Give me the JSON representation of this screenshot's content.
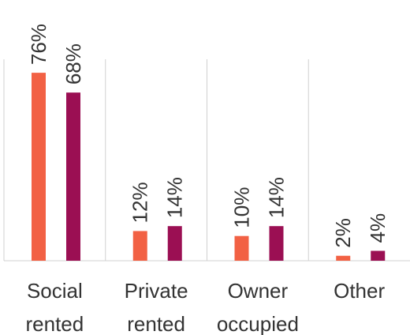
{
  "chart_data": {
    "type": "bar",
    "categories": [
      "Social rented",
      "Private rented",
      "Owner occupied",
      "Other"
    ],
    "series": [
      {
        "color": "#f26144",
        "values": [
          76,
          12,
          10,
          2
        ],
        "value_labels": [
          "76%",
          "12%",
          "10%",
          "2%"
        ]
      },
      {
        "color": "#9b0f53",
        "values": [
          68,
          14,
          14,
          4
        ],
        "value_labels": [
          "68%",
          "14%",
          "14%",
          "4%"
        ]
      }
    ]
  }
}
